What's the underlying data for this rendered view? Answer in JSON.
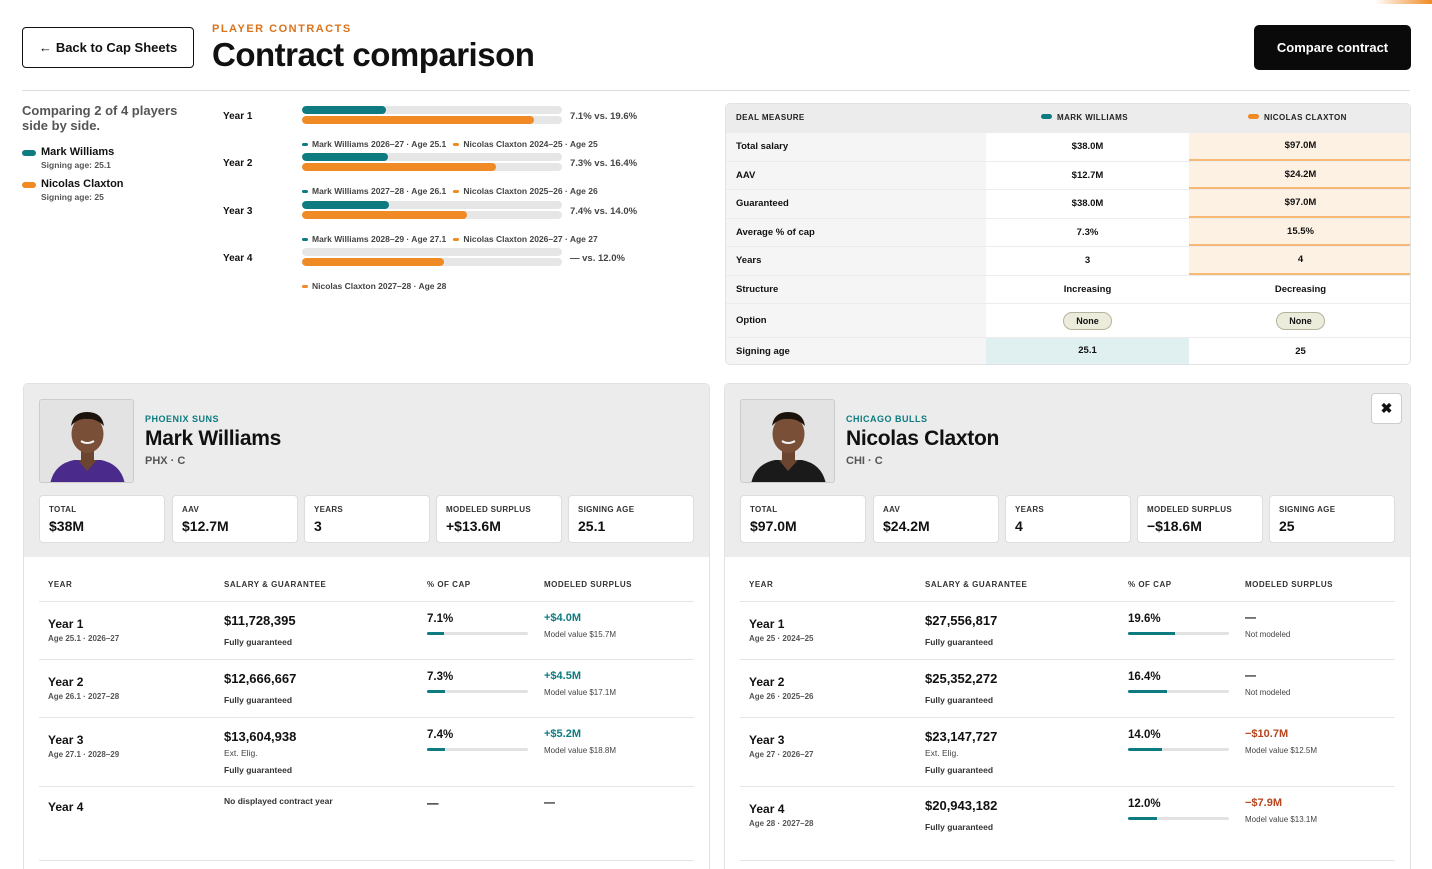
{
  "header": {
    "back_label": "Back to Cap Sheets",
    "eyebrow": "PLAYER CONTRACTS",
    "title": "Contract comparison",
    "compare_label": "Compare contract"
  },
  "summary": {
    "comparing": "Comparing 2 of 4 players side by side.",
    "players": [
      {
        "name": "Mark Williams",
        "sub": "Signing age: 25.1",
        "color": "#0d7b80"
      },
      {
        "name": "Nicolas Claxton",
        "sub": "Signing age: 25",
        "color": "#f08a24"
      }
    ]
  },
  "year_bars": [
    {
      "label": "Year 1",
      "a": 7.1,
      "b": 19.6,
      "pct_text": "7.1% vs. 19.6%",
      "meta_a": "Mark Williams 2026–27 · Age 25.1",
      "meta_b": "Nicolas Claxton 2024–25 · Age 25"
    },
    {
      "label": "Year 2",
      "a": 7.3,
      "b": 16.4,
      "pct_text": "7.3% vs. 16.4%",
      "meta_a": "Mark Williams 2027–28 · Age 26.1",
      "meta_b": "Nicolas Claxton 2025–26 · Age 26"
    },
    {
      "label": "Year 3",
      "a": 7.4,
      "b": 14.0,
      "pct_text": "7.4% vs. 14.0%",
      "meta_a": "Mark Williams 2028–29 · Age 27.1",
      "meta_b": "Nicolas Claxton 2026–27 · Age 27"
    },
    {
      "label": "Year 4",
      "a": null,
      "b": 12.0,
      "pct_text": "— vs. 12.0%",
      "meta_a": "",
      "meta_b": "Nicolas Claxton 2027–28 · Age 28"
    }
  ],
  "deal": {
    "headers": [
      "DEAL MEASURE",
      "MARK WILLIAMS",
      "NICOLAS CLAXTON"
    ],
    "rows": [
      {
        "label": "Total salary",
        "a": "$38.0M",
        "b": "$97.0M",
        "hl": "b"
      },
      {
        "label": "AAV",
        "a": "$12.7M",
        "b": "$24.2M",
        "hl": "b"
      },
      {
        "label": "Guaranteed",
        "a": "$38.0M",
        "b": "$97.0M",
        "hl": "b"
      },
      {
        "label": "Average % of cap",
        "a": "7.3%",
        "b": "15.5%",
        "hl": "b"
      },
      {
        "label": "Years",
        "a": "3",
        "b": "4",
        "hl": "b"
      },
      {
        "label": "Structure",
        "a": "Increasing",
        "b": "Decreasing",
        "hl": ""
      },
      {
        "label": "Option",
        "a": "None",
        "b": "None",
        "hl": "",
        "pill": true
      },
      {
        "label": "Signing age",
        "a": "25.1",
        "b": "25",
        "hl": "a"
      }
    ]
  },
  "table_headers": [
    "YEAR",
    "SALARY & GUARANTEE",
    "% OF CAP",
    "MODELED SURPLUS"
  ],
  "cards": [
    {
      "team": "PHOENIX SUNS",
      "name": "Mark Williams",
      "pos": "PHX · C",
      "jersey": "#4a2b8c",
      "stats": [
        {
          "label": "TOTAL",
          "value": "$38M"
        },
        {
          "label": "AAV",
          "value": "$12.7M"
        },
        {
          "label": "YEARS",
          "value": "3"
        },
        {
          "label": "MODELED SURPLUS",
          "value": "+$13.6M"
        },
        {
          "label": "SIGNING AGE",
          "value": "25.1"
        }
      ],
      "rows": [
        {
          "year": "Year 1",
          "sub": "Age 25.1 · 2026–27",
          "salary": "$11,728,395",
          "note": "",
          "guar": "Fully guaranteed",
          "pct": "7.1%",
          "pct_val": 7.1,
          "surplus": "+$4.0M",
          "sign": "pos",
          "model": "Model value $15.7M"
        },
        {
          "year": "Year 2",
          "sub": "Age 26.1 · 2027–28",
          "salary": "$12,666,667",
          "note": "",
          "guar": "Fully guaranteed",
          "pct": "7.3%",
          "pct_val": 7.3,
          "surplus": "+$4.5M",
          "sign": "pos",
          "model": "Model value $17.1M"
        },
        {
          "year": "Year 3",
          "sub": "Age 27.1 · 2028–29",
          "salary": "$13,604,938",
          "note": "Ext. Elig.",
          "guar": "Fully guaranteed",
          "pct": "7.4%",
          "pct_val": 7.4,
          "surplus": "+$5.2M",
          "sign": "pos",
          "model": "Model value $18.8M"
        },
        {
          "year": "Year 4",
          "sub": "",
          "salary": "",
          "note": "No displayed contract year",
          "guar": "",
          "pct": "—",
          "pct_val": null,
          "surplus": "—",
          "sign": "",
          "model": ""
        }
      ]
    },
    {
      "team": "CHICAGO BULLS",
      "name": "Nicolas Claxton",
      "pos": "CHI · C",
      "jersey": "#1a1a1a",
      "stats": [
        {
          "label": "TOTAL",
          "value": "$97.0M"
        },
        {
          "label": "AAV",
          "value": "$24.2M"
        },
        {
          "label": "YEARS",
          "value": "4"
        },
        {
          "label": "MODELED SURPLUS",
          "value": "−$18.6M"
        },
        {
          "label": "SIGNING AGE",
          "value": "25"
        }
      ],
      "rows": [
        {
          "year": "Year 1",
          "sub": "Age 25 · 2024–25",
          "salary": "$27,556,817",
          "note": "",
          "guar": "Fully guaranteed",
          "pct": "19.6%",
          "pct_val": 19.6,
          "surplus": "—",
          "sign": "",
          "model": "Not modeled"
        },
        {
          "year": "Year 2",
          "sub": "Age 26 · 2025–26",
          "salary": "$25,352,272",
          "note": "",
          "guar": "Fully guaranteed",
          "pct": "16.4%",
          "pct_val": 16.4,
          "surplus": "—",
          "sign": "",
          "model": "Not modeled"
        },
        {
          "year": "Year 3",
          "sub": "Age 27 · 2026–27",
          "salary": "$23,147,727",
          "note": "Ext. Elig.",
          "guar": "Fully guaranteed",
          "pct": "14.0%",
          "pct_val": 14.0,
          "surplus": "−$10.7M",
          "sign": "neg",
          "model": "Model value $12.5M"
        },
        {
          "year": "Year 4",
          "sub": "Age 28 · 2027–28",
          "salary": "$20,943,182",
          "note": "",
          "guar": "Fully guaranteed",
          "pct": "12.0%",
          "pct_val": 12.0,
          "surplus": "−$7.9M",
          "sign": "neg",
          "model": "Model value $13.1M"
        }
      ],
      "close_icon": "close-icon"
    }
  ]
}
